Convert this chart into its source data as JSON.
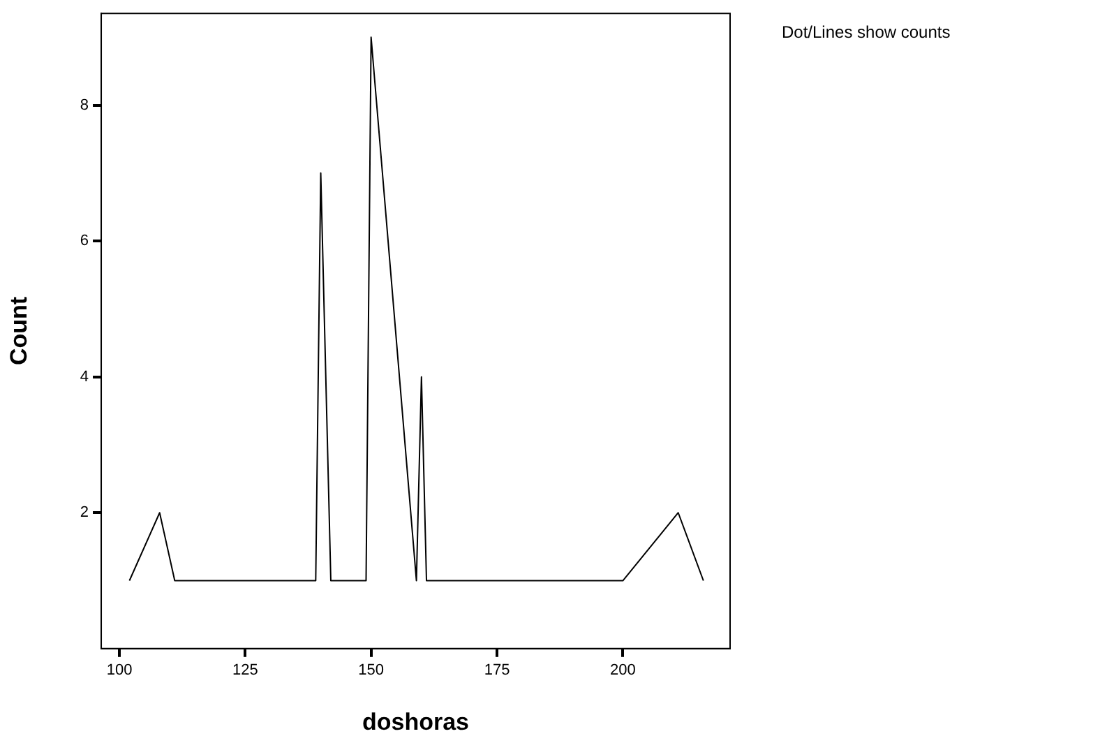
{
  "chart_data": {
    "type": "line",
    "xlabel": "doshoras",
    "ylabel": "Count",
    "x": [
      102,
      108,
      111,
      139,
      140,
      142,
      149,
      150,
      159,
      160,
      161,
      200,
      211,
      216
    ],
    "series": [
      {
        "color": "#000000",
        "values": [
          1,
          2,
          1,
          1,
          7,
          1,
          1,
          9,
          1,
          4,
          1,
          1,
          2,
          1
        ]
      }
    ],
    "xlim": [
      96.4,
      221.3
    ],
    "xticks": [
      100,
      125,
      150,
      175,
      200
    ],
    "ylim": [
      0,
      9.35
    ],
    "yticks": [
      2,
      4,
      6,
      8
    ],
    "grid": false,
    "legend": false,
    "marker": "none",
    "line_style": "solid",
    "annotations": [
      "Dot/Lines show counts"
    ]
  }
}
